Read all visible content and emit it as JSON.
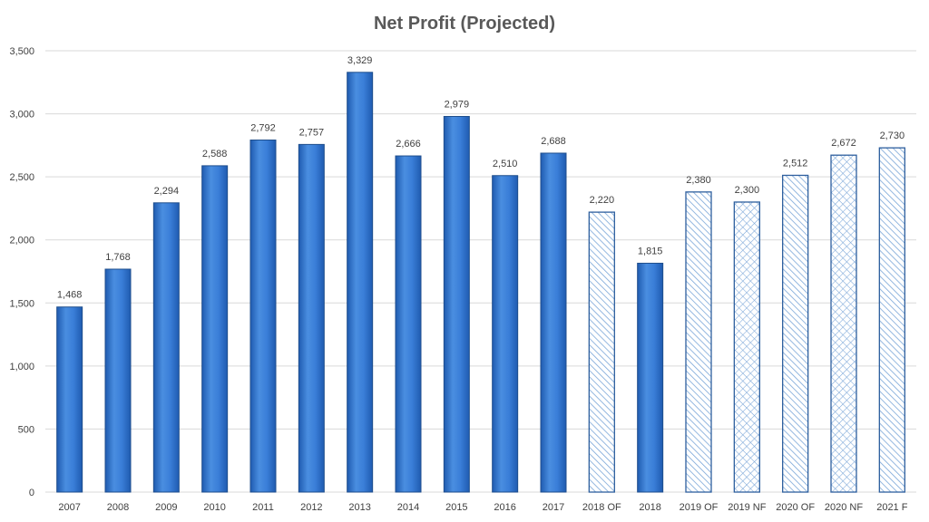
{
  "chart_data": {
    "type": "bar",
    "title": "Net Profit (Projected)",
    "xlabel": "",
    "ylabel": "",
    "ylim": [
      0,
      3500
    ],
    "yticks": [
      0,
      500,
      1000,
      1500,
      2000,
      2500,
      3000,
      3500
    ],
    "ytick_labels": [
      "0",
      "500",
      "1,000",
      "1,500",
      "2,000",
      "2,500",
      "3,000",
      "3,500"
    ],
    "grid": true,
    "legend": "none",
    "categories": [
      "2007",
      "2008",
      "2009",
      "2010",
      "2011",
      "2012",
      "2013",
      "2014",
      "2015",
      "2016",
      "2017",
      "2018 OF",
      "2018",
      "2019 OF",
      "2019 NF",
      "2020 OF",
      "2020 NF",
      "2021 F"
    ],
    "values": [
      1468,
      1768,
      2294,
      2588,
      2792,
      2757,
      3329,
      2666,
      2979,
      2510,
      2688,
      2220,
      1815,
      2380,
      2300,
      2512,
      2672,
      2730
    ],
    "value_labels": [
      "1,468",
      "1,768",
      "2,294",
      "2,588",
      "2,792",
      "2,757",
      "3,329",
      "2,666",
      "2,979",
      "2,510",
      "2,688",
      "2,220",
      "1,815",
      "2,380",
      "2,300",
      "2,512",
      "2,672",
      "2,730"
    ],
    "fill_styles": [
      "solid",
      "solid",
      "solid",
      "solid",
      "solid",
      "solid",
      "solid",
      "solid",
      "solid",
      "solid",
      "solid",
      "diagonal-hatch",
      "solid",
      "diagonal-hatch",
      "cross-hatch",
      "diagonal-hatch",
      "cross-hatch",
      "diagonal-hatch"
    ],
    "colors": {
      "bar_fill_top": "#4a8ee0",
      "bar_fill_mid": "#2e74d0",
      "bar_fill_bottom": "#1f5bb0",
      "bar_outline": "#1f4e8c",
      "hatch_line": "#7aa6d8",
      "gridline": "#d9d9d9",
      "text": "#404040",
      "title": "#595959"
    }
  }
}
